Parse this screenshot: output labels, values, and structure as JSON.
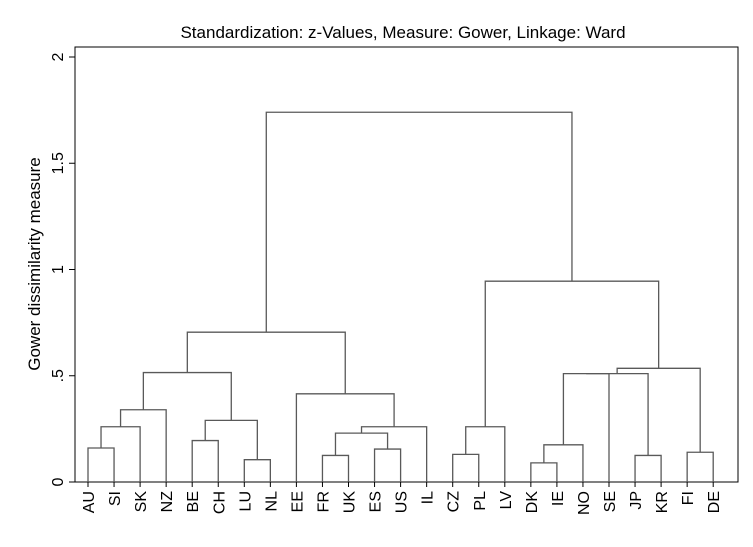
{
  "chart_data": {
    "type": "dendrogram",
    "title": "Standardization: z-Values, Measure: Gower, Linkage: Ward",
    "ylabel": "Gower dissimilarity measure",
    "ylim": [
      0,
      2
    ],
    "yticks": [
      0,
      0.5,
      1,
      1.5,
      2
    ],
    "ytick_labels": [
      "0",
      ".5",
      "1",
      "1.5",
      "2"
    ],
    "leaves": [
      "AU",
      "SI",
      "SK",
      "NZ",
      "BE",
      "CH",
      "LU",
      "NL",
      "EE",
      "FR",
      "UK",
      "ES",
      "US",
      "IL",
      "CZ",
      "PL",
      "LV",
      "DK",
      "IE",
      "NO",
      "SE",
      "JP",
      "KR",
      "FI",
      "DE"
    ],
    "merges": [
      {
        "id": "c1",
        "a": "AU",
        "b": "SI",
        "height": 0.16
      },
      {
        "id": "c2",
        "a": "c1",
        "b": "SK",
        "height": 0.26
      },
      {
        "id": "c3",
        "a": "c2",
        "b": "NZ",
        "height": 0.34
      },
      {
        "id": "c4",
        "a": "BE",
        "b": "CH",
        "height": 0.195
      },
      {
        "id": "c5",
        "a": "LU",
        "b": "NL",
        "height": 0.105
      },
      {
        "id": "c6",
        "a": "c4",
        "b": "c5",
        "height": 0.29
      },
      {
        "id": "c7",
        "a": "c3",
        "b": "c6",
        "height": 0.515
      },
      {
        "id": "c8",
        "a": "FR",
        "b": "UK",
        "height": 0.125
      },
      {
        "id": "c9",
        "a": "ES",
        "b": "US",
        "height": 0.155
      },
      {
        "id": "c10",
        "a": "c8",
        "b": "c9",
        "height": 0.23
      },
      {
        "id": "c11",
        "a": "c10",
        "b": "IL",
        "height": 0.26
      },
      {
        "id": "c12",
        "a": "EE",
        "b": "c11",
        "height": 0.415
      },
      {
        "id": "c13",
        "a": "c7",
        "b": "c12",
        "height": 0.705
      },
      {
        "id": "c14",
        "a": "CZ",
        "b": "PL",
        "height": 0.13
      },
      {
        "id": "c15",
        "a": "c14",
        "b": "LV",
        "height": 0.26
      },
      {
        "id": "c16",
        "a": "DK",
        "b": "IE",
        "height": 0.09
      },
      {
        "id": "c17",
        "a": "c16",
        "b": "NO",
        "height": 0.175
      },
      {
        "id": "c18",
        "a": "c17",
        "b": "SE",
        "height": 0.51
      },
      {
        "id": "c19",
        "a": "JP",
        "b": "KR",
        "height": 0.125
      },
      {
        "id": "c20",
        "a": "c18",
        "b": "c19",
        "height": 0.51
      },
      {
        "id": "c21",
        "a": "FI",
        "b": "DE",
        "height": 0.14
      },
      {
        "id": "c22",
        "a": "c20",
        "b": "c21",
        "height": 0.535
      },
      {
        "id": "c23",
        "a": "c15",
        "b": "c22",
        "height": 0.945
      },
      {
        "id": "c24",
        "a": "c13",
        "b": "c23",
        "height": 1.74
      }
    ],
    "grid": false,
    "legend": "none"
  }
}
